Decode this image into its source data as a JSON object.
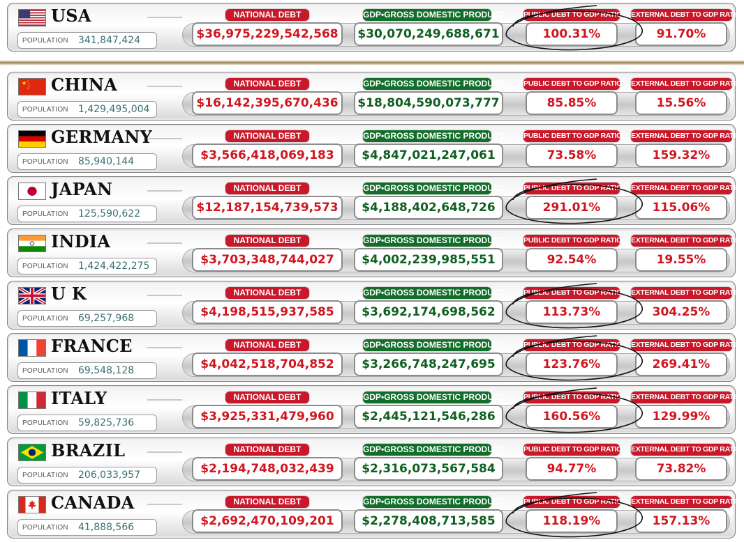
{
  "labels": {
    "national_debt": "NATIONAL DEBT",
    "gdp": "GDP•GROSS DOMESTIC PRODUCT",
    "public_ratio": "PUBLIC DEBT TO GDP RATIO",
    "external_ratio": "EXTERNAL DEBT TO GDP RATIO",
    "population": "POPULATION"
  },
  "colors": {
    "debt_red": "#d0161f",
    "gdp_green": "#0f6020",
    "tag_red": "#c8182a",
    "tag_green": "#146e2b",
    "population_text": "#3d6f70"
  },
  "countries": [
    {
      "name": "USA",
      "flag": "usa-flag-icon",
      "population": "341,847,424",
      "national_debt": "$36,975,229,542,568",
      "gdp": "$30,070,249,688,671",
      "public_ratio": "100.31%",
      "external_ratio": "91.70%",
      "circled": true
    },
    {
      "name": "CHINA",
      "flag": "china-flag-icon",
      "population": "1,429,495,004",
      "national_debt": "$16,142,395,670,436",
      "gdp": "$18,804,590,073,777",
      "public_ratio": "85.85%",
      "external_ratio": "15.56%",
      "circled": false
    },
    {
      "name": "GERMANY",
      "flag": "germany-flag-icon",
      "population": "85,940,144",
      "national_debt": "$3,566,418,069,183",
      "gdp": "$4,847,021,247,061",
      "public_ratio": "73.58%",
      "external_ratio": "159.32%",
      "circled": false
    },
    {
      "name": "JAPAN",
      "flag": "japan-flag-icon",
      "population": "125,590,622",
      "national_debt": "$12,187,154,739,573",
      "gdp": "$4,188,402,648,726",
      "public_ratio": "291.01%",
      "external_ratio": "115.06%",
      "circled": true
    },
    {
      "name": "INDIA",
      "flag": "india-flag-icon",
      "population": "1,424,422,275",
      "national_debt": "$3,703,348,744,027",
      "gdp": "$4,002,239,985,551",
      "public_ratio": "92.54%",
      "external_ratio": "19.55%",
      "circled": false
    },
    {
      "name": "U K",
      "flag": "uk-flag-icon",
      "population": "69,257,968",
      "national_debt": "$4,198,515,937,585",
      "gdp": "$3,692,174,698,562",
      "public_ratio": "113.73%",
      "external_ratio": "304.25%",
      "circled": true
    },
    {
      "name": "FRANCE",
      "flag": "france-flag-icon",
      "population": "69,548,128",
      "national_debt": "$4,042,518,704,852",
      "gdp": "$3,266,748,247,695",
      "public_ratio": "123.76%",
      "external_ratio": "269.41%",
      "circled": true
    },
    {
      "name": "ITALY",
      "flag": "italy-flag-icon",
      "population": "59,825,736",
      "national_debt": "$3,925,331,479,960",
      "gdp": "$2,445,121,546,286",
      "public_ratio": "160.56%",
      "external_ratio": "129.99%",
      "circled": true
    },
    {
      "name": "BRAZIL",
      "flag": "brazil-flag-icon",
      "population": "206,033,957",
      "national_debt": "$2,194,748,032,439",
      "gdp": "$2,316,073,567,584",
      "public_ratio": "94.77%",
      "external_ratio": "73.82%",
      "circled": false
    },
    {
      "name": "CANADA",
      "flag": "canada-flag-icon",
      "population": "41,888,566",
      "national_debt": "$2,692,470,109,201",
      "gdp": "$2,278,408,713,585",
      "public_ratio": "118.19%",
      "external_ratio": "157.13%",
      "circled": true
    }
  ]
}
